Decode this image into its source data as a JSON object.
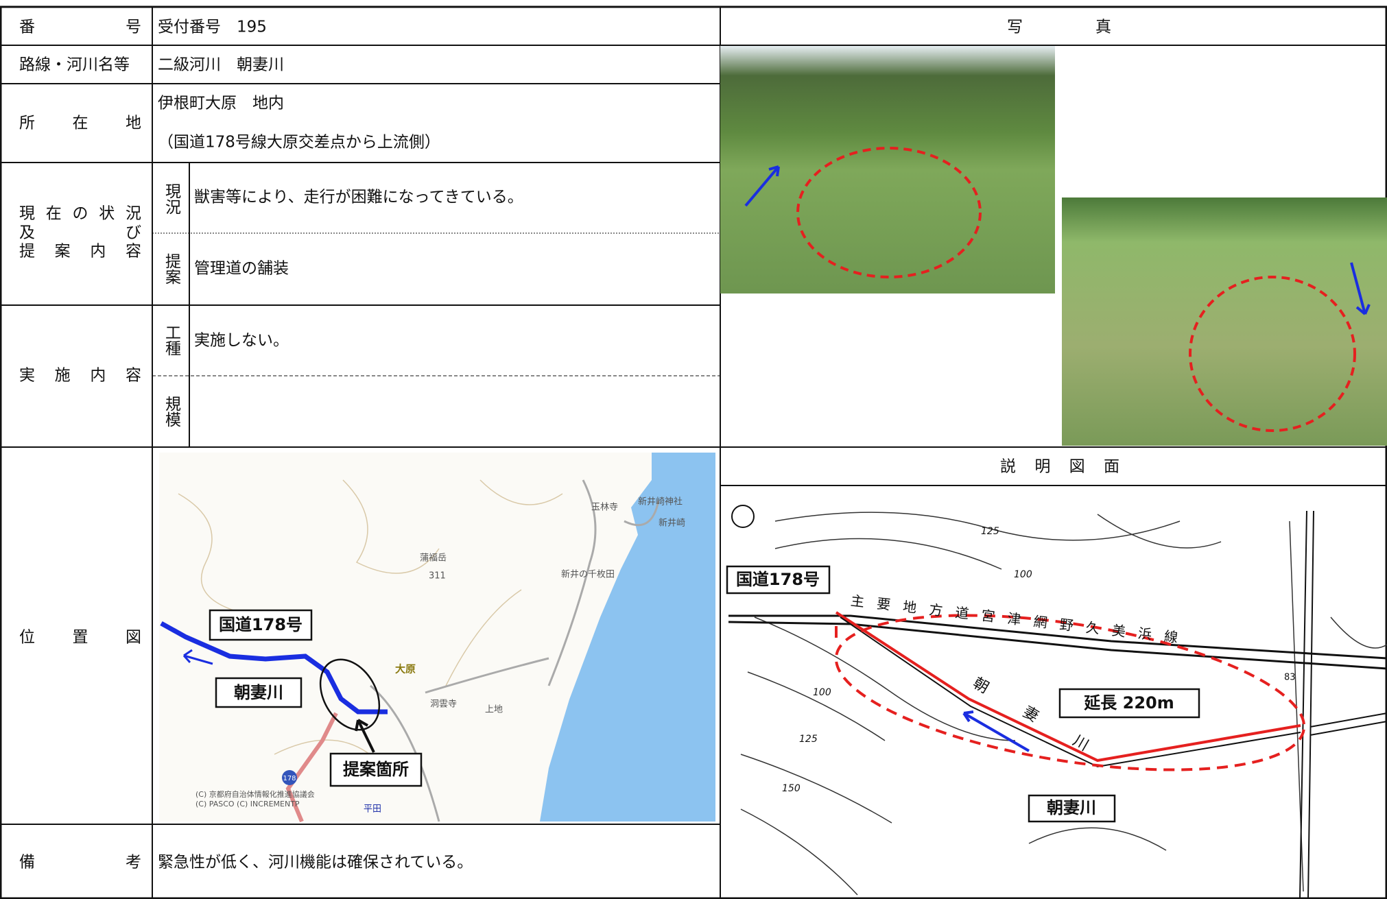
{
  "rows": {
    "number": {
      "label": "番号",
      "value": "受付番号　195"
    },
    "route": {
      "label": "路線・河川名等",
      "value": "二級河川　朝妻川"
    },
    "location": {
      "label": "所在地",
      "lines": [
        "伊根町大原　地内",
        "（国道178号線大原交差点から上流側）"
      ]
    },
    "status": {
      "label_lines": [
        "現在の状況",
        "及び",
        "提案内容"
      ],
      "current": {
        "label": "現況",
        "text": "獣害等により、走行が困難になってきている。"
      },
      "proposal": {
        "label": "提案",
        "text": "管理道の舗装"
      }
    },
    "implementation": {
      "label": "実施内容",
      "work_type": {
        "label": "工種",
        "text": "実施しない。"
      },
      "scale": {
        "label": "規模"
      }
    },
    "location_map": {
      "label": "位置図",
      "annotations": [
        "国道178号",
        "朝妻川",
        "提案箇所"
      ],
      "place_labels": [
        "玉林寺",
        "新井崎神社",
        "新井崎",
        "蒲福岳",
        "311",
        "新井の千枚田",
        "大原",
        "洞雲寺",
        "上地",
        "178",
        "平田"
      ],
      "credits": [
        "(C) 京都府自治体情報化推進協議会",
        "(C) PASCO (C) INCREMENTP"
      ]
    },
    "remarks": {
      "label": "備考",
      "text": "緊急性が低く、河川機能は確保されている。"
    }
  },
  "photos": {
    "header": "写真"
  },
  "explanatory_drawing": {
    "header": "説明図面",
    "road_label": "国道178号",
    "length_label": "延長 220m",
    "river_label": "朝妻川",
    "prefectural_road": "主要地方道宮津網野久美浜線",
    "river_along": "朝妻川",
    "contour_labels": [
      125,
      100,
      100,
      125,
      150,
      83
    ]
  }
}
